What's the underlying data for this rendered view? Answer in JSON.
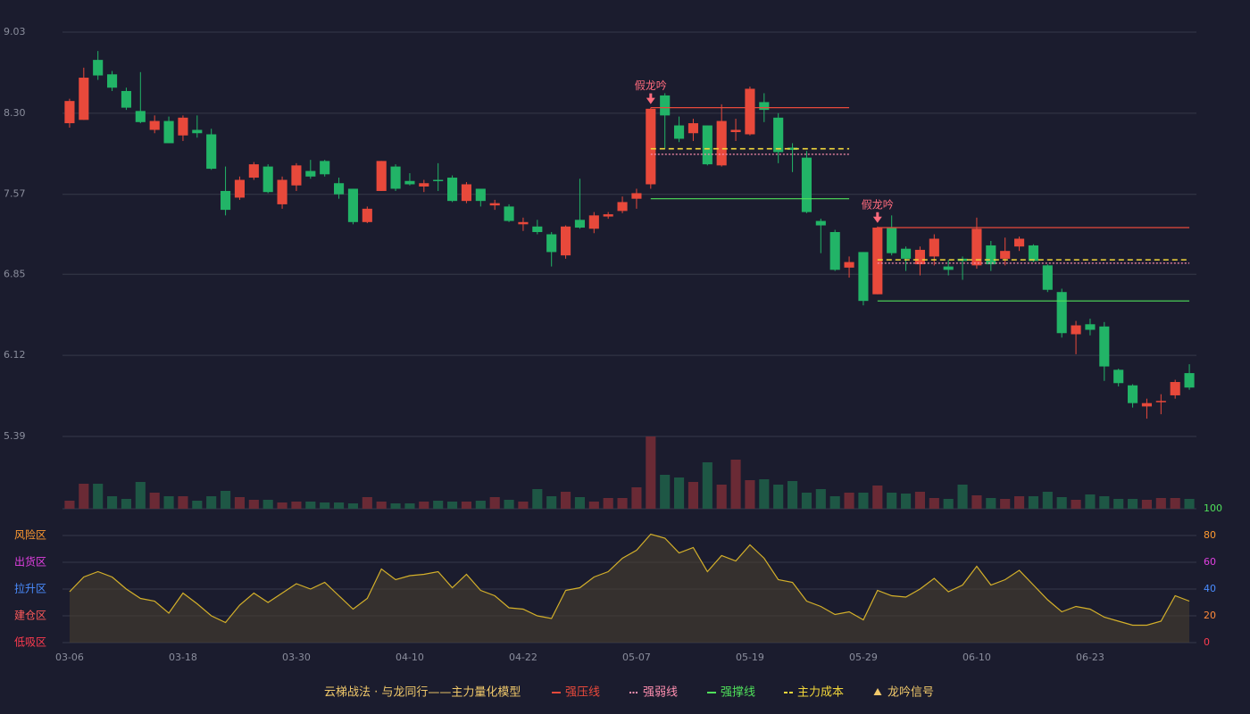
{
  "chart_data": {
    "type": "candlestick",
    "categories": [
      "03-06",
      null,
      null,
      null,
      null,
      null,
      null,
      null,
      "03-18",
      null,
      null,
      null,
      null,
      null,
      null,
      null,
      "03-30",
      null,
      null,
      null,
      null,
      null,
      null,
      null,
      "04-10",
      null,
      null,
      null,
      null,
      null,
      null,
      null,
      "04-22",
      null,
      null,
      null,
      null,
      null,
      null,
      null,
      "05-07",
      null,
      null,
      null,
      null,
      null,
      null,
      null,
      "05-19",
      null,
      null,
      null,
      null,
      null,
      null,
      null,
      "05-29",
      null,
      null,
      null,
      null,
      null,
      null,
      null,
      "06-10",
      null,
      null,
      null,
      null,
      null,
      null,
      null,
      "06-23",
      null,
      null,
      null,
      null,
      null,
      null,
      null
    ],
    "ylim": [
      5.39,
      9.03
    ],
    "yticks": [
      5.39,
      6.12,
      6.85,
      7.57,
      {
        "value": 8.3,
        "label": "8.30"
      },
      9.03
    ],
    "grid": true,
    "up_color": "#e8493b",
    "down_color": "#22b467",
    "volume_up_color": "#6a2a35",
    "volume_down_color": "#1e5745",
    "ohlc": [
      [
        8.21,
        8.43,
        8.17,
        8.41
      ],
      [
        8.24,
        8.71,
        8.24,
        8.62
      ],
      [
        8.78,
        8.86,
        8.6,
        8.64
      ],
      [
        8.65,
        8.68,
        8.5,
        8.53
      ],
      [
        8.5,
        8.53,
        8.33,
        8.35
      ],
      [
        8.32,
        8.67,
        8.21,
        8.22
      ],
      [
        8.15,
        8.28,
        8.12,
        8.23
      ],
      [
        8.23,
        8.27,
        8.03,
        8.03
      ],
      [
        8.1,
        8.28,
        8.05,
        8.26
      ],
      [
        8.15,
        8.28,
        8.08,
        8.12
      ],
      [
        8.11,
        8.16,
        7.79,
        7.8
      ],
      [
        7.6,
        7.82,
        7.38,
        7.43
      ],
      [
        7.54,
        7.73,
        7.52,
        7.7
      ],
      [
        7.72,
        7.86,
        7.7,
        7.84
      ],
      [
        7.82,
        7.84,
        7.58,
        7.59
      ],
      [
        7.48,
        7.73,
        7.44,
        7.7
      ],
      [
        7.65,
        7.85,
        7.6,
        7.83
      ],
      [
        7.78,
        7.88,
        7.71,
        7.73
      ],
      [
        7.87,
        7.88,
        7.73,
        7.75
      ],
      [
        7.67,
        7.72,
        7.53,
        7.57
      ],
      [
        7.62,
        7.62,
        7.3,
        7.32
      ],
      [
        7.32,
        7.46,
        7.31,
        7.44
      ],
      [
        7.6,
        7.87,
        7.6,
        7.87
      ],
      [
        7.82,
        7.84,
        7.6,
        7.62
      ],
      [
        7.69,
        7.76,
        7.65,
        7.66
      ],
      [
        7.64,
        7.7,
        7.59,
        7.67
      ],
      [
        7.7,
        7.85,
        7.6,
        7.69
      ],
      [
        7.72,
        7.74,
        7.5,
        7.51
      ],
      [
        7.51,
        7.68,
        7.49,
        7.66
      ],
      [
        7.62,
        7.62,
        7.46,
        7.51
      ],
      [
        7.47,
        7.52,
        7.43,
        7.49
      ],
      [
        7.46,
        7.48,
        7.32,
        7.33
      ],
      [
        7.3,
        7.36,
        7.24,
        7.32
      ],
      [
        7.28,
        7.34,
        7.21,
        7.23
      ],
      [
        7.21,
        7.23,
        6.92,
        7.05
      ],
      [
        7.02,
        7.29,
        6.99,
        7.28
      ],
      [
        7.34,
        7.71,
        7.26,
        7.27
      ],
      [
        7.26,
        7.41,
        7.22,
        7.38
      ],
      [
        7.37,
        7.41,
        7.35,
        7.39
      ],
      [
        7.42,
        7.55,
        7.4,
        7.5
      ],
      [
        7.53,
        7.62,
        7.44,
        7.58
      ],
      [
        7.66,
        8.35,
        7.62,
        8.34
      ],
      [
        8.46,
        8.48,
        7.98,
        8.28
      ],
      [
        8.19,
        8.27,
        8.04,
        8.07
      ],
      [
        8.12,
        8.25,
        8.05,
        8.21
      ],
      [
        8.19,
        8.19,
        7.83,
        7.84
      ],
      [
        7.83,
        8.38,
        7.82,
        8.23
      ],
      [
        8.13,
        8.25,
        8.05,
        8.15
      ],
      [
        8.11,
        8.54,
        8.1,
        8.52
      ],
      [
        8.4,
        8.48,
        8.22,
        8.33
      ],
      [
        8.26,
        8.3,
        7.85,
        7.95
      ],
      [
        7.99,
        8.03,
        7.77,
        7.97
      ],
      [
        7.9,
        7.96,
        7.4,
        7.41
      ],
      [
        7.33,
        7.35,
        7.04,
        7.29
      ],
      [
        7.23,
        7.25,
        6.88,
        6.89
      ],
      [
        6.91,
        7.01,
        6.82,
        6.96
      ],
      [
        7.05,
        7.05,
        6.57,
        6.61
      ],
      [
        6.67,
        7.28,
        6.67,
        7.27
      ],
      [
        7.27,
        7.38,
        7.02,
        7.04
      ],
      [
        7.08,
        7.1,
        6.88,
        6.99
      ],
      [
        6.94,
        7.1,
        6.84,
        7.07
      ],
      [
        7.01,
        7.21,
        6.93,
        7.17
      ],
      [
        6.92,
        6.98,
        6.84,
        6.89
      ],
      [
        6.99,
        7.01,
        6.8,
        6.97
      ],
      [
        6.93,
        7.36,
        6.9,
        7.26
      ],
      [
        7.11,
        7.15,
        6.88,
        6.94
      ],
      [
        6.99,
        7.18,
        6.93,
        7.06
      ],
      [
        7.1,
        7.19,
        7.06,
        7.17
      ],
      [
        7.11,
        7.12,
        6.96,
        6.97
      ],
      [
        6.93,
        6.94,
        6.69,
        6.71
      ],
      [
        6.69,
        6.72,
        6.28,
        6.32
      ],
      [
        6.31,
        6.43,
        6.13,
        6.39
      ],
      [
        6.4,
        6.45,
        6.3,
        6.35
      ],
      [
        6.38,
        6.42,
        5.89,
        6.02
      ],
      [
        5.99,
        6.0,
        5.84,
        5.87
      ],
      [
        5.85,
        5.86,
        5.65,
        5.69
      ],
      [
        5.66,
        5.73,
        5.55,
        5.69
      ],
      [
        5.7,
        5.77,
        5.59,
        5.71
      ],
      [
        5.76,
        5.9,
        5.73,
        5.88
      ],
      [
        5.96,
        6.04,
        5.81,
        5.83
      ]
    ],
    "volume": [
      9,
      28,
      28,
      14,
      11,
      30,
      18,
      14,
      14,
      9,
      14,
      20,
      13,
      10,
      10,
      7,
      8,
      8,
      7,
      7,
      6,
      13,
      8,
      6,
      6,
      8,
      9,
      8,
      8,
      9,
      13,
      10,
      8,
      22,
      14,
      19,
      13,
      8,
      12,
      12,
      24,
      81,
      38,
      35,
      30,
      52,
      27,
      55,
      32,
      33,
      27,
      31,
      18,
      22,
      14,
      18,
      18,
      26,
      18,
      17,
      19,
      12,
      11,
      27,
      15,
      12,
      11,
      14,
      14,
      19,
      13,
      10,
      16,
      14,
      11,
      11,
      10,
      12,
      12,
      11
    ],
    "series": [
      {
        "name": "强压线",
        "color": "#e8493b",
        "dash": "solid",
        "values": [
          null,
          null,
          null,
          null,
          null,
          null,
          null,
          null,
          null,
          null,
          null,
          null,
          null,
          null,
          null,
          null,
          null,
          null,
          null,
          null,
          null,
          null,
          null,
          null,
          null,
          null,
          null,
          null,
          null,
          null,
          null,
          null,
          null,
          null,
          null,
          null,
          null,
          null,
          null,
          null,
          null,
          8.35,
          8.35,
          8.35,
          8.35,
          8.35,
          8.35,
          8.35,
          8.35,
          8.35,
          8.35,
          8.35,
          8.35,
          8.35,
          8.35,
          8.35,
          null,
          7.27,
          7.27,
          7.27,
          7.27,
          7.27,
          7.27,
          7.27,
          7.27,
          7.27,
          7.27,
          7.27,
          7.27,
          7.27,
          7.27,
          7.27,
          7.27,
          7.27,
          7.27,
          7.27,
          7.27,
          7.27,
          7.27,
          7.27
        ]
      },
      {
        "name": "强弱线",
        "color": "#ff8fb0",
        "dash": "dotted",
        "values": [
          null,
          null,
          null,
          null,
          null,
          null,
          null,
          null,
          null,
          null,
          null,
          null,
          null,
          null,
          null,
          null,
          null,
          null,
          null,
          null,
          null,
          null,
          null,
          null,
          null,
          null,
          null,
          null,
          null,
          null,
          null,
          null,
          null,
          null,
          null,
          null,
          null,
          null,
          null,
          null,
          null,
          7.93,
          7.93,
          7.93,
          7.93,
          7.93,
          7.93,
          7.93,
          7.93,
          7.93,
          7.93,
          7.93,
          7.93,
          7.93,
          7.93,
          7.93,
          null,
          6.95,
          6.95,
          6.95,
          6.95,
          6.95,
          6.95,
          6.95,
          6.95,
          6.95,
          6.95,
          6.95,
          6.95,
          6.95,
          6.95,
          6.95,
          6.95,
          6.95,
          6.95,
          6.95,
          6.95,
          6.95,
          6.95,
          6.95
        ]
      },
      {
        "name": "强撑线",
        "color": "#4fe05a",
        "dash": "solid",
        "values": [
          null,
          null,
          null,
          null,
          null,
          null,
          null,
          null,
          null,
          null,
          null,
          null,
          null,
          null,
          null,
          null,
          null,
          null,
          null,
          null,
          null,
          null,
          null,
          null,
          null,
          null,
          null,
          null,
          null,
          null,
          null,
          null,
          null,
          null,
          null,
          null,
          null,
          null,
          null,
          null,
          null,
          7.53,
          7.53,
          7.53,
          7.53,
          7.53,
          7.53,
          7.53,
          7.53,
          7.53,
          7.53,
          7.53,
          7.53,
          7.53,
          7.53,
          7.53,
          null,
          6.61,
          6.61,
          6.61,
          6.61,
          6.61,
          6.61,
          6.61,
          6.61,
          6.61,
          6.61,
          6.61,
          6.61,
          6.61,
          6.61,
          6.61,
          6.61,
          6.61,
          6.61,
          6.61,
          6.61,
          6.61,
          6.61,
          6.61
        ]
      },
      {
        "name": "主力成本",
        "color": "#f2d63a",
        "dash": "dashed",
        "values": [
          null,
          null,
          null,
          null,
          null,
          null,
          null,
          null,
          null,
          null,
          null,
          null,
          null,
          null,
          null,
          null,
          null,
          null,
          null,
          null,
          null,
          null,
          null,
          null,
          null,
          null,
          null,
          null,
          null,
          null,
          null,
          null,
          null,
          null,
          null,
          null,
          null,
          null,
          null,
          null,
          null,
          7.98,
          7.98,
          7.98,
          7.98,
          7.98,
          7.98,
          7.98,
          7.98,
          7.98,
          7.98,
          7.98,
          7.98,
          7.98,
          7.98,
          7.98,
          null,
          6.98,
          6.98,
          6.98,
          6.98,
          6.98,
          6.98,
          6.98,
          6.98,
          6.98,
          6.98,
          6.98,
          6.98,
          6.98,
          6.98,
          6.98,
          6.98,
          6.98,
          6.98,
          6.98,
          6.98,
          6.98,
          6.98,
          6.98
        ]
      }
    ],
    "signals": [
      null,
      null,
      null,
      null,
      null,
      null,
      null,
      null,
      null,
      null,
      null,
      null,
      null,
      null,
      null,
      null,
      null,
      null,
      null,
      null,
      null,
      null,
      null,
      null,
      null,
      null,
      null,
      null,
      null,
      null,
      null,
      null,
      null,
      null,
      null,
      null,
      null,
      null,
      null,
      null,
      null,
      "假龙吟",
      null,
      null,
      null,
      null,
      null,
      null,
      null,
      null,
      null,
      null,
      null,
      null,
      null,
      null,
      null,
      "假龙吟",
      null,
      null,
      null,
      null,
      null,
      null,
      null,
      null,
      null,
      null,
      null,
      null,
      null,
      null,
      null,
      null,
      null,
      null,
      null,
      null,
      null,
      null,
      null,
      null
    ],
    "signal_name": "龙吟信号",
    "signal_color": "#ff6b7d",
    "legend_title": "云梯战法 · 与龙同行——主力量化模型",
    "legend_title_color": "#f0c86a",
    "indicator": {
      "color": "#d4b02a",
      "fill": "#4a4230",
      "ylim": [
        0,
        100
      ],
      "yticks": [
        0,
        20,
        40,
        60,
        80,
        100
      ],
      "tick_colors": [
        "#ff3b4f",
        "#ff8a3a",
        "#4a8cff",
        "#e040e0",
        "#ff9a30",
        "#4fe05a"
      ],
      "zones": [
        {
          "value": 80,
          "label": "风险区",
          "color": "#ff9a30"
        },
        {
          "value": 60,
          "label": "出货区",
          "color": "#e040e0"
        },
        {
          "value": 40,
          "label": "拉升区",
          "color": "#4a8cff"
        },
        {
          "value": 20,
          "label": "建仓区",
          "color": "#ff5a5a"
        },
        {
          "value": 0,
          "label": "低吸区",
          "color": "#ff3b4f"
        }
      ],
      "values": [
        38,
        49,
        53,
        49,
        40,
        33,
        31,
        22,
        37,
        29,
        20,
        15,
        28,
        37,
        30,
        37,
        44,
        40,
        45,
        35,
        25,
        33,
        55,
        47,
        50,
        51,
        53,
        41,
        51,
        39,
        35,
        26,
        25,
        20,
        18,
        39,
        41,
        49,
        53,
        63,
        69,
        81,
        78,
        67,
        71,
        53,
        65,
        61,
        73,
        63,
        47,
        45,
        31,
        27,
        21,
        23,
        17,
        39,
        35,
        34,
        40,
        48,
        38,
        43,
        57,
        43,
        47,
        54,
        43,
        32,
        23,
        27,
        25,
        19,
        16,
        13,
        13,
        16,
        35,
        31
      ]
    }
  }
}
